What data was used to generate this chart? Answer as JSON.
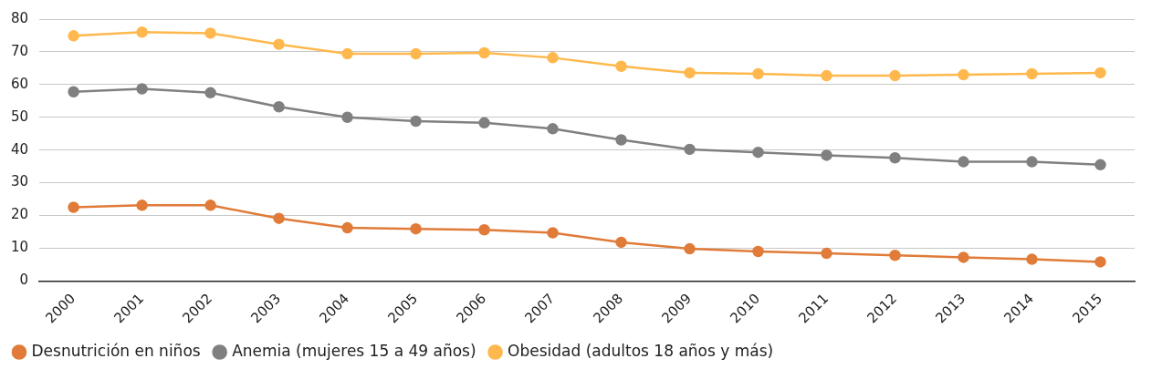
{
  "chart_data": {
    "type": "line",
    "categories": [
      "2000",
      "2001",
      "2002",
      "2003",
      "2004",
      "2005",
      "2006",
      "2007",
      "2008",
      "2009",
      "2010",
      "2011",
      "2012",
      "2013",
      "2014",
      "2015"
    ],
    "series": [
      {
        "name": "Desnutrición en niños",
        "color": "#e07b39",
        "values": [
          22.5,
          23.1,
          23.1,
          19.1,
          16.2,
          15.9,
          15.6,
          14.7,
          11.8,
          9.8,
          9.0,
          8.4,
          7.8,
          7.2,
          6.6,
          5.8
        ]
      },
      {
        "name": "Anemia (mujeres 15 a 49 años)",
        "color": "#808080",
        "values": [
          57.8,
          58.7,
          57.5,
          53.2,
          50.0,
          48.8,
          48.3,
          46.5,
          43.1,
          40.2,
          39.3,
          38.4,
          37.6,
          36.4,
          36.4,
          35.5
        ]
      },
      {
        "name": "Obesidad (adultos 18 años y más)",
        "color": "#ffb84d",
        "values": [
          74.9,
          76.0,
          75.7,
          72.3,
          69.4,
          69.4,
          69.7,
          68.2,
          65.6,
          63.6,
          63.3,
          62.7,
          62.7,
          63.0,
          63.3,
          63.6
        ]
      }
    ],
    "ylim": [
      0,
      80
    ],
    "yticks": [
      0,
      10,
      20,
      30,
      40,
      50,
      60,
      70,
      80
    ],
    "grid": "y",
    "legend": "bottom left",
    "marker": "circle",
    "line_style": "solid"
  }
}
